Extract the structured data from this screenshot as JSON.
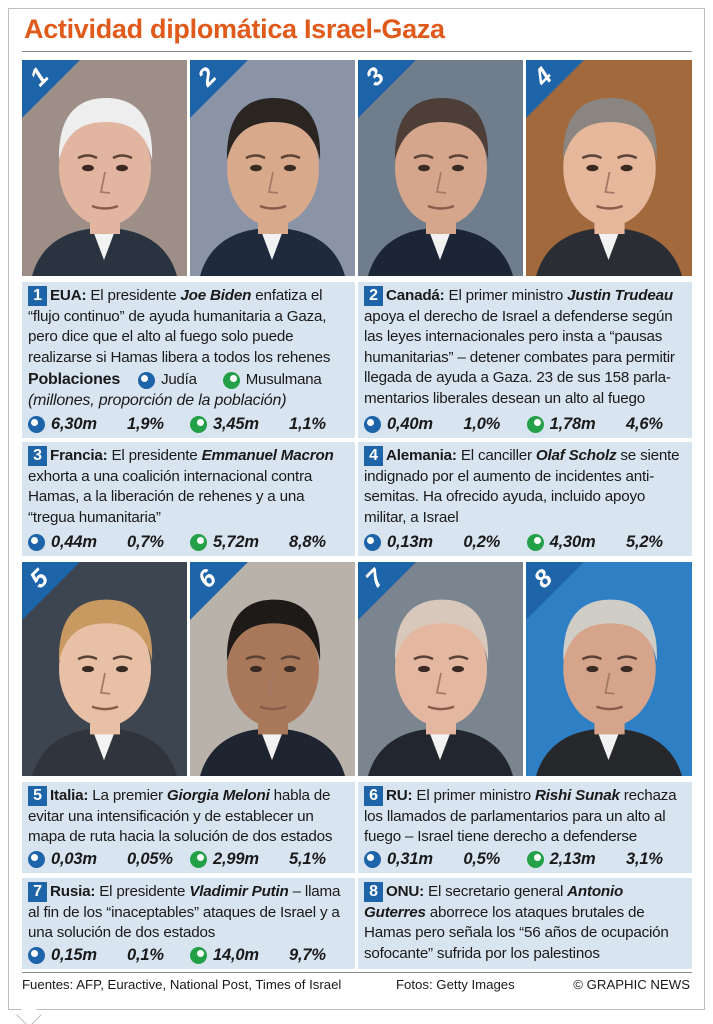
{
  "title": "Actividad diplomática Israel-Gaza",
  "photos": [
    {
      "number": "1",
      "icon": "portrait-joe-biden",
      "bg": "#9e8e88",
      "skin": "#e2b5a0",
      "hair": "#eeeeee",
      "suit": "#2a3440"
    },
    {
      "number": "2",
      "icon": "portrait-justin-trudeau",
      "bg": "#8b94a6",
      "skin": "#d9a98b",
      "hair": "#2b2521",
      "suit": "#1f2a3d"
    },
    {
      "number": "3",
      "icon": "portrait-emmanuel-macron",
      "bg": "#6f7d8c",
      "skin": "#d6a68c",
      "hair": "#4d3f37",
      "suit": "#1c2536"
    },
    {
      "number": "4",
      "icon": "portrait-olaf-scholz",
      "bg": "#a26a3c",
      "skin": "#e6b79a",
      "hair": "#8a8580",
      "suit": "#2a2d33"
    },
    {
      "number": "5",
      "icon": "portrait-giorgia-meloni",
      "bg": "#3d4550",
      "skin": "#e8c0a6",
      "hair": "#c89a62",
      "suit": "#30353d"
    },
    {
      "number": "6",
      "icon": "portrait-rishi-sunak",
      "bg": "#b8b2aa",
      "skin": "#a9785a",
      "hair": "#1d1a18",
      "suit": "#1e2430"
    },
    {
      "number": "7",
      "icon": "portrait-vladimir-putin",
      "bg": "#7a8590",
      "skin": "#e4b8a0",
      "hair": "#d8c8bc",
      "suit": "#22272f"
    },
    {
      "number": "8",
      "icon": "portrait-antonio-guterres",
      "bg": "#2f7fc4",
      "skin": "#d6a48a",
      "hair": "#d0ccc6",
      "suit": "#26282c"
    }
  ],
  "panels": [
    {
      "number": "1",
      "country": "EUA:",
      "pre": " El presidente ",
      "person": "Joe Biden",
      "text": " enfatiza el “flujo continuo” de ayuda humanitaria a Gaza, pero dice que el alto al fuego solo puede realizarse si Hamas libera a todos los rehenes",
      "stats": {
        "jewish_m": "6,30m",
        "jewish_pct": "1,9%",
        "muslim_m": "3,45m",
        "muslim_pct": "1,1%"
      }
    },
    {
      "number": "2",
      "country": "Canadá:",
      "pre": " El primer ministro ",
      "person": "Justin Trudeau",
      "text": " apoya el derecho de Israel a defenderse según las leyes internacionales pero insta a “pausas humanitarias” – detener combates para permitir llegada de ayuda a Gaza. 23 de sus 158 parla-mentarios liberales desean un alto al fuego",
      "stats": {
        "jewish_m": "0,40m",
        "jewish_pct": "1,0%",
        "muslim_m": "1,78m",
        "muslim_pct": "4,6%"
      }
    },
    {
      "number": "3",
      "country": "Francia:",
      "pre": " El presidente ",
      "person": "Emmanuel Macron",
      "text": " exhorta a una coalición internacional contra Hamas, a la liberación de rehenes y a una “tregua humanitaria”",
      "stats": {
        "jewish_m": "0,44m",
        "jewish_pct": "0,7%",
        "muslim_m": "5,72m",
        "muslim_pct": "8,8%"
      }
    },
    {
      "number": "4",
      "country": "Alemania:",
      "pre": " El canciller ",
      "person": "Olaf Scholz",
      "text": " se siente indignado por el aumento de incidentes anti-semitas. Ha ofrecido ayuda, incluido apoyo militar, a Israel",
      "stats": {
        "jewish_m": "0,13m",
        "jewish_pct": "0,2%",
        "muslim_m": "4,30m",
        "muslim_pct": "5,2%"
      }
    },
    {
      "number": "5",
      "country": "Italia:",
      "pre": " La premier ",
      "person": "Giorgia Meloni",
      "text": " habla de evitar una intensificación y de establecer un mapa de ruta hacia la solución de dos estados",
      "stats": {
        "jewish_m": "0,03m",
        "jewish_pct": "0,05%",
        "muslim_m": "2,99m",
        "muslim_pct": "5,1%"
      }
    },
    {
      "number": "6",
      "country": "RU:",
      "pre": " El primer ministro ",
      "person": "Rishi Sunak",
      "text": " rechaza los llamados de parlamentarios para un alto al fuego – Israel tiene derecho a defenderse",
      "stats": {
        "jewish_m": "0,31m",
        "jewish_pct": "0,5%",
        "muslim_m": "2,13m",
        "muslim_pct": "3,1%"
      }
    },
    {
      "number": "7",
      "country": "Rusia:",
      "pre": " El presidente ",
      "person": "Vladimir Putin",
      "text": " – llama al fin de los “inaceptables” ataques de Israel y a una solución de dos estados",
      "stats": {
        "jewish_m": "0,15m",
        "jewish_pct": "0,1%",
        "muslim_m": "14,0m",
        "muslim_pct": "9,7%"
      }
    },
    {
      "number": "8",
      "country": "ONU:",
      "pre": " El secretario general ",
      "person": "Antonio Guterres",
      "text": " aborrece los ataques brutales de Hamas pero señala los “56 años de ocupación sofocante” sufrida por los palestinos"
    }
  ],
  "legend": {
    "heading": "Poblaciones",
    "jewish": "Judía",
    "muslim": "Musulmana",
    "note": "(millones, proporción de la población)"
  },
  "colors": {
    "title": "#e05a1c",
    "panel": "#d9e4f1",
    "accent_blue": "#1d64a8",
    "accent_green": "#24a048"
  },
  "footer": {
    "sources": "Fuentes: AFP, Euractive, National Post, Times of Israel",
    "photos": "Fotos: Getty Images",
    "credit": "© GRAPHIC NEWS"
  }
}
